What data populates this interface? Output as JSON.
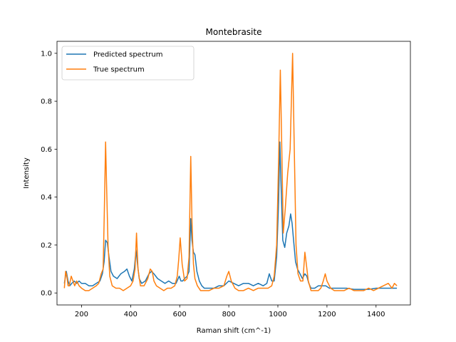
{
  "chart_data": {
    "type": "line",
    "title": "Montebrasite",
    "xlabel": "Raman shift (cm^-1)",
    "ylabel": "Intensity",
    "xlim": [
      100,
      1540
    ],
    "ylim": [
      -0.05,
      1.05
    ],
    "xticks": [
      200,
      400,
      600,
      800,
      1000,
      1200,
      1400
    ],
    "yticks": [
      0.0,
      0.2,
      0.4,
      0.6,
      0.8,
      1.0
    ],
    "grid": false,
    "legend_position": "upper left",
    "series": [
      {
        "name": "Predicted spectrum",
        "color": "#1f77b4",
        "x": [
          130,
          138,
          145,
          152,
          160,
          170,
          180,
          190,
          200,
          215,
          230,
          245,
          260,
          275,
          285,
          292,
          298,
          305,
          312,
          320,
          330,
          345,
          360,
          375,
          385,
          395,
          405,
          415,
          422,
          428,
          435,
          445,
          460,
          475,
          485,
          495,
          510,
          525,
          540,
          555,
          570,
          585,
          598,
          605,
          612,
          620,
          630,
          638,
          645,
          650,
          656,
          662,
          670,
          680,
          690,
          700,
          720,
          740,
          760,
          780,
          800,
          820,
          840,
          860,
          880,
          900,
          920,
          940,
          955,
          965,
          975,
          985,
          995,
          1003,
          1008,
          1013,
          1020,
          1028,
          1036,
          1045,
          1052,
          1058,
          1064,
          1072,
          1080,
          1090,
          1100,
          1110,
          1118,
          1126,
          1135,
          1150,
          1165,
          1180,
          1195,
          1210,
          1230,
          1250,
          1280,
          1310,
          1340,
          1370,
          1400,
          1430,
          1460,
          1485
        ],
        "y": [
          0.04,
          0.09,
          0.05,
          0.03,
          0.04,
          0.05,
          0.04,
          0.05,
          0.04,
          0.04,
          0.03,
          0.03,
          0.04,
          0.05,
          0.08,
          0.13,
          0.22,
          0.21,
          0.15,
          0.09,
          0.07,
          0.06,
          0.08,
          0.09,
          0.1,
          0.07,
          0.05,
          0.1,
          0.18,
          0.12,
          0.06,
          0.04,
          0.05,
          0.08,
          0.09,
          0.08,
          0.06,
          0.05,
          0.04,
          0.05,
          0.04,
          0.04,
          0.07,
          0.05,
          0.05,
          0.06,
          0.07,
          0.09,
          0.31,
          0.22,
          0.17,
          0.16,
          0.09,
          0.05,
          0.03,
          0.02,
          0.02,
          0.02,
          0.03,
          0.03,
          0.05,
          0.04,
          0.03,
          0.04,
          0.04,
          0.03,
          0.04,
          0.03,
          0.04,
          0.08,
          0.05,
          0.05,
          0.15,
          0.38,
          0.63,
          0.45,
          0.22,
          0.19,
          0.25,
          0.28,
          0.33,
          0.29,
          0.22,
          0.13,
          0.1,
          0.08,
          0.06,
          0.08,
          0.07,
          0.04,
          0.02,
          0.02,
          0.03,
          0.03,
          0.03,
          0.02,
          0.02,
          0.02,
          0.02,
          0.015,
          0.015,
          0.015,
          0.02,
          0.02,
          0.02,
          0.02
        ]
      },
      {
        "name": "True spectrum",
        "color": "#ff7f0e",
        "x": [
          130,
          135,
          140,
          145,
          150,
          158,
          165,
          172,
          180,
          190,
          200,
          215,
          230,
          245,
          260,
          270,
          280,
          288,
          293,
          298,
          302,
          308,
          315,
          325,
          340,
          355,
          370,
          385,
          400,
          410,
          418,
          424,
          430,
          440,
          455,
          470,
          480,
          488,
          495,
          505,
          520,
          535,
          550,
          565,
          580,
          590,
          596,
          602,
          610,
          620,
          630,
          638,
          645,
          650,
          656,
          662,
          672,
          685,
          700,
          720,
          740,
          760,
          780,
          792,
          800,
          810,
          825,
          840,
          860,
          880,
          900,
          920,
          940,
          960,
          975,
          985,
          995,
          1003,
          1010,
          1016,
          1022,
          1030,
          1040,
          1050,
          1055,
          1060,
          1066,
          1074,
          1082,
          1092,
          1102,
          1110,
          1116,
          1124,
          1135,
          1150,
          1165,
          1175,
          1185,
          1193,
          1200,
          1215,
          1230,
          1250,
          1270,
          1290,
          1310,
          1330,
          1350,
          1370,
          1390,
          1410,
          1430,
          1450,
          1465,
          1475,
          1485
        ],
        "y": [
          0.02,
          0.09,
          0.07,
          0.03,
          0.03,
          0.07,
          0.05,
          0.03,
          0.05,
          0.03,
          0.02,
          0.01,
          0.01,
          0.02,
          0.03,
          0.04,
          0.08,
          0.1,
          0.35,
          0.63,
          0.45,
          0.2,
          0.07,
          0.03,
          0.02,
          0.02,
          0.01,
          0.02,
          0.03,
          0.05,
          0.1,
          0.25,
          0.1,
          0.03,
          0.03,
          0.06,
          0.1,
          0.09,
          0.05,
          0.03,
          0.02,
          0.01,
          0.02,
          0.02,
          0.03,
          0.07,
          0.14,
          0.23,
          0.12,
          0.05,
          0.06,
          0.15,
          0.57,
          0.3,
          0.12,
          0.06,
          0.03,
          0.01,
          0.01,
          0.01,
          0.02,
          0.02,
          0.03,
          0.07,
          0.09,
          0.05,
          0.02,
          0.01,
          0.01,
          0.02,
          0.01,
          0.02,
          0.02,
          0.02,
          0.03,
          0.07,
          0.2,
          0.55,
          0.93,
          0.6,
          0.25,
          0.35,
          0.5,
          0.6,
          0.8,
          1.0,
          0.65,
          0.2,
          0.08,
          0.05,
          0.05,
          0.17,
          0.12,
          0.05,
          0.01,
          0.01,
          0.01,
          0.02,
          0.05,
          0.08,
          0.05,
          0.02,
          0.01,
          0.01,
          0.01,
          0.02,
          0.01,
          0.01,
          0.01,
          0.02,
          0.01,
          0.02,
          0.03,
          0.04,
          0.02,
          0.04,
          0.03
        ]
      }
    ]
  }
}
